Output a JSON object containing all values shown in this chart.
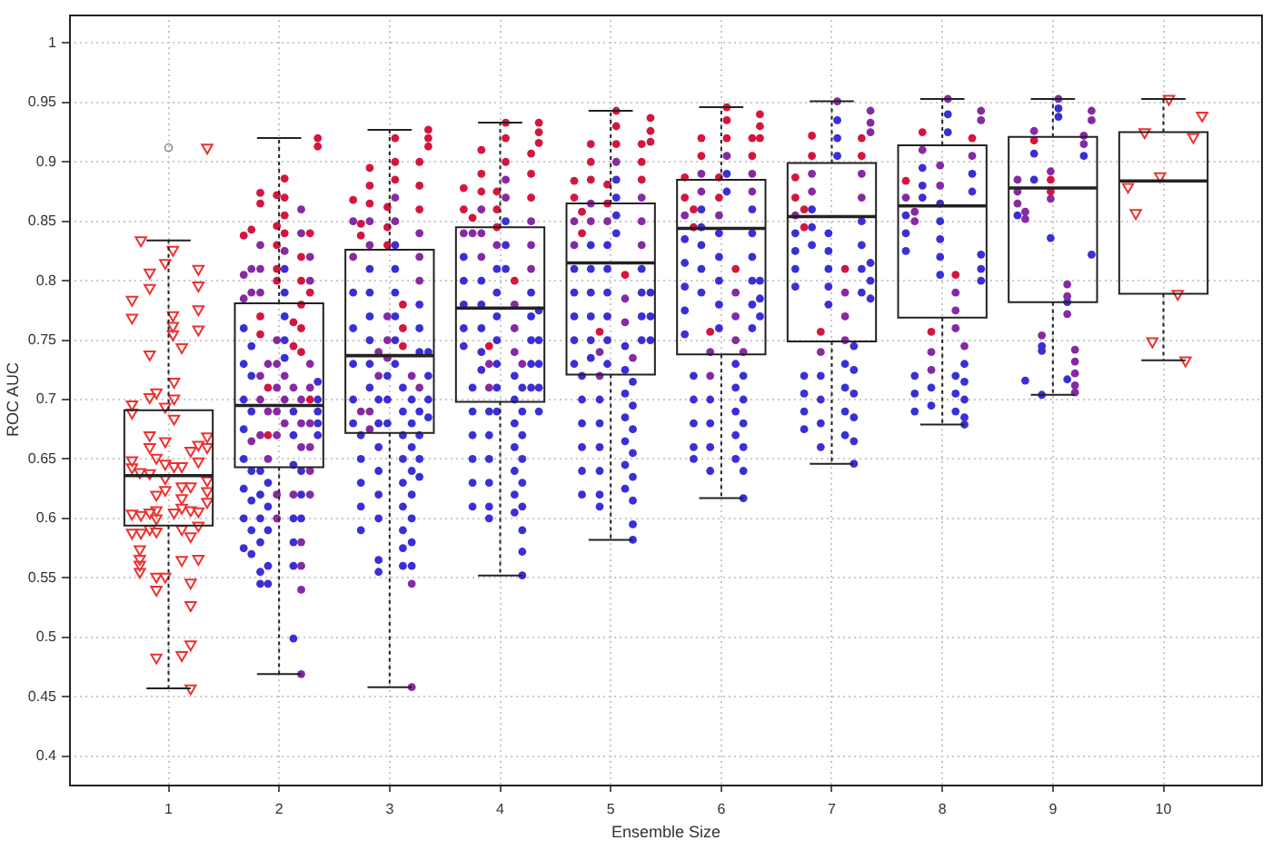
{
  "chart_data": {
    "type": "box",
    "xlabel": "Ensemble Size",
    "ylabel": "ROC AUC",
    "x": [
      1,
      2,
      3,
      4,
      5,
      6,
      7,
      8,
      9,
      10
    ],
    "xlim": [
      0.1,
      10.9
    ],
    "xticks": [
      1,
      2,
      3,
      4,
      5,
      6,
      7,
      8,
      9,
      10
    ],
    "ylim": [
      0.376,
      1.024
    ],
    "yticks": [
      0.4,
      0.45,
      0.5,
      0.55,
      0.6,
      0.65,
      0.7,
      0.75,
      0.8,
      0.85,
      0.9,
      0.95,
      1
    ],
    "grid": true,
    "boxes": [
      {
        "low": 0.457,
        "q1": 0.594,
        "median": 0.636,
        "q3": 0.691,
        "high": 0.834,
        "outliers": [
          0.912
        ]
      },
      {
        "low": 0.469,
        "q1": 0.643,
        "median": 0.695,
        "q3": 0.781,
        "high": 0.92
      },
      {
        "low": 0.458,
        "q1": 0.672,
        "median": 0.737,
        "q3": 0.826,
        "high": 0.927
      },
      {
        "low": 0.552,
        "q1": 0.698,
        "median": 0.777,
        "q3": 0.845,
        "high": 0.933
      },
      {
        "low": 0.582,
        "q1": 0.721,
        "median": 0.815,
        "q3": 0.865,
        "high": 0.943
      },
      {
        "low": 0.617,
        "q1": 0.738,
        "median": 0.844,
        "q3": 0.885,
        "high": 0.946
      },
      {
        "low": 0.646,
        "q1": 0.749,
        "median": 0.854,
        "q3": 0.899,
        "high": 0.951
      },
      {
        "low": 0.679,
        "q1": 0.769,
        "median": 0.863,
        "q3": 0.914,
        "high": 0.953
      },
      {
        "low": 0.704,
        "q1": 0.782,
        "median": 0.878,
        "q3": 0.921,
        "high": 0.953
      },
      {
        "low": 0.733,
        "q1": 0.789,
        "median": 0.884,
        "q3": 0.925,
        "high": 0.953
      }
    ],
    "series": [
      {
        "type": "scatter",
        "color": "#3a2fd6",
        "marker": "circle",
        "x": [
          1.68,
          1.68,
          1.68,
          1.68,
          1.68,
          1.68,
          1.68,
          1.68,
          1.75,
          1.75,
          1.75,
          1.75,
          1.75,
          1.75,
          1.75,
          1.83,
          1.83,
          1.83,
          1.83,
          1.83,
          1.83,
          1.9,
          1.9,
          1.9,
          1.9,
          1.9,
          2.05,
          2.05,
          2.05,
          2.05,
          2.05,
          2.13,
          2.13,
          2.13,
          2.13,
          2.13,
          2.13,
          2.13,
          2.2,
          2.2,
          2.2,
          2.35,
          2.35,
          2.35,
          2.35,
          2.35,
          2.67,
          2.67,
          2.67,
          2.67,
          2.67,
          2.74,
          2.74,
          2.74,
          2.74,
          2.74,
          2.82,
          2.82,
          2.82,
          2.82,
          2.82,
          2.82,
          2.9,
          2.9,
          2.9,
          2.9,
          2.9,
          2.9,
          2.9,
          2.9,
          2.98,
          2.98,
          2.98,
          3.05,
          3.05,
          3.05,
          3.05,
          3.05,
          3.05,
          3.12,
          3.12,
          3.12,
          3.12,
          3.12,
          3.12,
          3.12,
          3.12,
          3.12,
          3.2,
          3.2,
          3.2,
          3.2,
          3.2,
          3.2,
          3.2,
          3.2,
          3.27,
          3.27,
          3.27,
          3.27,
          3.27,
          3.27,
          3.27,
          3.35,
          3.35,
          3.35,
          3.35,
          3.67,
          3.67,
          3.67,
          3.67,
          3.67,
          3.75,
          3.75,
          3.75,
          3.75,
          3.75,
          3.75,
          3.83,
          3.83,
          3.83,
          3.83,
          3.83,
          3.9,
          3.9,
          3.9,
          3.9,
          3.9,
          3.9,
          3.97,
          3.97,
          3.97,
          3.97,
          3.97,
          3.97,
          3.97,
          4.05,
          4.05,
          4.05,
          4.13,
          4.13,
          4.13,
          4.13,
          4.13,
          4.13,
          4.13,
          4.2,
          4.2,
          4.2,
          4.2,
          4.2,
          4.2,
          4.2,
          4.2,
          4.2,
          4.28,
          4.28,
          4.28,
          4.28,
          4.28,
          4.35,
          4.35,
          4.35,
          4.35,
          4.35,
          4.67,
          4.67,
          4.67,
          4.67,
          4.67,
          4.74,
          4.74,
          4.74,
          4.74,
          4.74,
          4.74,
          4.82,
          4.82,
          4.82,
          4.82,
          4.82,
          4.82,
          4.9,
          4.9,
          4.9,
          4.9,
          4.9,
          4.9,
          4.97,
          4.97,
          4.97,
          4.97,
          4.97,
          4.97,
          5.05,
          5.05,
          5.05,
          5.05,
          5.13,
          5.13,
          5.13,
          5.13,
          5.13,
          5.13,
          5.13,
          5.2,
          5.2,
          5.2,
          5.2,
          5.2,
          5.2,
          5.2,
          5.2,
          5.28,
          5.28,
          5.28,
          5.28,
          5.36,
          5.36,
          5.36,
          5.67,
          5.67,
          5.67,
          5.67,
          5.67,
          5.75,
          5.75,
          5.75,
          5.75,
          5.75,
          5.82,
          5.82,
          5.82,
          5.82,
          5.82,
          5.9,
          5.9,
          5.9,
          5.9,
          5.98,
          5.98,
          5.98,
          5.98,
          5.98,
          6.05,
          6.05,
          6.13,
          6.13,
          6.13,
          6.13,
          6.13,
          6.2,
          6.2,
          6.2,
          6.2,
          6.2,
          6.2,
          6.28,
          6.28,
          6.28,
          6.28,
          6.28,
          6.28,
          6.35,
          6.35,
          6.35,
          6.67,
          6.67,
          6.67,
          6.67,
          6.75,
          6.75,
          6.75,
          6.75,
          6.82,
          6.82,
          6.82,
          6.9,
          6.9,
          6.9,
          6.9,
          6.97,
          6.97,
          6.97,
          6.97,
          6.97,
          7.05,
          7.05,
          7.05,
          7.12,
          7.12,
          7.12,
          7.12,
          7.2,
          7.2,
          7.2,
          7.2,
          7.2,
          7.2,
          7.27,
          7.27,
          7.27,
          7.27,
          7.35,
          7.35,
          7.35,
          7.67,
          7.67,
          7.67,
          7.75,
          7.75,
          7.75,
          7.82,
          7.82,
          7.82,
          7.9,
          7.9,
          7.98,
          7.98,
          7.98,
          7.98,
          7.98,
          8.05,
          8.05,
          8.12,
          8.12,
          8.12,
          8.2,
          8.2,
          8.2,
          8.2,
          8.2,
          8.27,
          8.27,
          8.35,
          8.35,
          8.35,
          8.68,
          8.75,
          8.83,
          8.83,
          8.9,
          8.9,
          8.9,
          8.98,
          9.05,
          9.05,
          9.13,
          9.13,
          9.28,
          9.35
        ],
        "values": [
          0.76,
          0.73,
          0.7,
          0.675,
          0.65,
          0.625,
          0.6,
          0.575,
          0.745,
          0.72,
          0.69,
          0.64,
          0.615,
          0.59,
          0.57,
          0.64,
          0.62,
          0.6,
          0.58,
          0.555,
          0.545,
          0.63,
          0.61,
          0.59,
          0.56,
          0.545,
          0.81,
          0.79,
          0.77,
          0.75,
          0.735,
          0.69,
          0.67,
          0.645,
          0.6,
          0.58,
          0.56,
          0.499,
          0.64,
          0.62,
          0.6,
          0.715,
          0.7,
          0.69,
          0.68,
          0.67,
          0.79,
          0.76,
          0.73,
          0.7,
          0.68,
          0.67,
          0.65,
          0.63,
          0.61,
          0.59,
          0.81,
          0.79,
          0.77,
          0.75,
          0.73,
          0.71,
          0.7,
          0.68,
          0.66,
          0.64,
          0.62,
          0.6,
          0.565,
          0.555,
          0.72,
          0.7,
          0.68,
          0.83,
          0.81,
          0.79,
          0.77,
          0.75,
          0.73,
          0.71,
          0.69,
          0.67,
          0.65,
          0.63,
          0.61,
          0.59,
          0.575,
          0.56,
          0.7,
          0.68,
          0.66,
          0.64,
          0.62,
          0.6,
          0.58,
          0.56,
          0.78,
          0.76,
          0.74,
          0.69,
          0.67,
          0.65,
          0.635,
          0.74,
          0.72,
          0.7,
          0.685,
          0.82,
          0.8,
          0.78,
          0.76,
          0.745,
          0.71,
          0.69,
          0.67,
          0.65,
          0.63,
          0.61,
          0.8,
          0.78,
          0.76,
          0.74,
          0.725,
          0.69,
          0.67,
          0.65,
          0.63,
          0.61,
          0.6,
          0.81,
          0.79,
          0.77,
          0.75,
          0.73,
          0.71,
          0.69,
          0.85,
          0.83,
          0.81,
          0.72,
          0.7,
          0.68,
          0.66,
          0.64,
          0.62,
          0.605,
          0.71,
          0.69,
          0.67,
          0.65,
          0.63,
          0.61,
          0.59,
          0.572,
          0.552,
          0.79,
          0.77,
          0.75,
          0.73,
          0.71,
          0.775,
          0.75,
          0.73,
          0.71,
          0.69,
          0.81,
          0.79,
          0.77,
          0.75,
          0.73,
          0.72,
          0.7,
          0.68,
          0.66,
          0.64,
          0.62,
          0.83,
          0.81,
          0.79,
          0.77,
          0.75,
          0.735,
          0.7,
          0.68,
          0.66,
          0.64,
          0.62,
          0.61,
          0.83,
          0.81,
          0.79,
          0.77,
          0.75,
          0.73,
          0.885,
          0.87,
          0.855,
          0.84,
          0.745,
          0.725,
          0.705,
          0.685,
          0.665,
          0.645,
          0.625,
          0.715,
          0.695,
          0.675,
          0.655,
          0.635,
          0.615,
          0.595,
          0.582,
          0.81,
          0.79,
          0.77,
          0.75,
          0.79,
          0.77,
          0.75,
          0.835,
          0.815,
          0.795,
          0.775,
          0.755,
          0.72,
          0.7,
          0.68,
          0.66,
          0.65,
          0.86,
          0.845,
          0.83,
          0.81,
          0.79,
          0.7,
          0.68,
          0.66,
          0.64,
          0.84,
          0.82,
          0.8,
          0.78,
          0.76,
          0.89,
          0.875,
          0.73,
          0.71,
          0.69,
          0.67,
          0.65,
          0.72,
          0.7,
          0.68,
          0.66,
          0.64,
          0.617,
          0.86,
          0.84,
          0.82,
          0.8,
          0.78,
          0.76,
          0.8,
          0.785,
          0.77,
          0.84,
          0.825,
          0.81,
          0.795,
          0.72,
          0.705,
          0.69,
          0.675,
          0.86,
          0.845,
          0.83,
          0.72,
          0.7,
          0.68,
          0.66,
          0.84,
          0.825,
          0.81,
          0.795,
          0.78,
          0.935,
          0.92,
          0.905,
          0.73,
          0.71,
          0.69,
          0.67,
          0.745,
          0.725,
          0.705,
          0.685,
          0.665,
          0.646,
          0.85,
          0.83,
          0.81,
          0.79,
          0.815,
          0.8,
          0.785,
          0.855,
          0.84,
          0.825,
          0.72,
          0.705,
          0.69,
          0.895,
          0.88,
          0.87,
          0.71,
          0.695,
          0.865,
          0.85,
          0.835,
          0.82,
          0.805,
          0.94,
          0.925,
          0.72,
          0.705,
          0.69,
          0.73,
          0.715,
          0.7,
          0.685,
          0.679,
          0.89,
          0.875,
          0.822,
          0.81,
          0.8,
          0.855,
          0.716,
          0.907,
          0.885,
          0.745,
          0.741,
          0.704,
          0.836,
          0.945,
          0.938,
          0.782,
          0.717,
          0.905,
          0.822
        ]
      },
      {
        "type": "scatter",
        "color": "#862aa2",
        "marker": "circle",
        "x": [
          1.68,
          1.68,
          1.75,
          1.75,
          1.75,
          1.83,
          1.83,
          1.83,
          1.83,
          1.83,
          1.83,
          1.9,
          1.9,
          1.9,
          1.98,
          1.98,
          1.98,
          1.98,
          1.98,
          1.98,
          1.98,
          2.05,
          2.05,
          2.05,
          2.05,
          2.13,
          2.13,
          2.2,
          2.2,
          2.2,
          2.2,
          2.2,
          2.2,
          2.2,
          2.2,
          2.2,
          2.28,
          2.28,
          2.28,
          2.28,
          2.28,
          2.28,
          2.28,
          2.28,
          2.67,
          2.67,
          2.74,
          2.82,
          2.82,
          2.82,
          2.82,
          2.9,
          2.9,
          2.98,
          2.98,
          2.98,
          3.05,
          3.05,
          3.2,
          3.2,
          3.2,
          3.27,
          3.27,
          3.27,
          3.27,
          3.67,
          3.75,
          3.83,
          3.83,
          3.83,
          3.9,
          3.9,
          3.97,
          4.05,
          4.05,
          4.13,
          4.13,
          4.13,
          4.2,
          4.28,
          4.28,
          4.28,
          4.67,
          4.67,
          4.82,
          4.82,
          4.9,
          4.9,
          4.97,
          5.05,
          5.13,
          5.13,
          5.2,
          5.28,
          5.28,
          5.28,
          5.67,
          5.82,
          5.82,
          5.9,
          5.9,
          5.98,
          6.05,
          6.13,
          6.13,
          6.13,
          6.2,
          6.28,
          6.28,
          6.67,
          6.82,
          6.82,
          6.9,
          7.05,
          7.12,
          7.12,
          7.12,
          7.27,
          7.27,
          7.35,
          7.35,
          7.35,
          7.67,
          7.75,
          7.75,
          7.82,
          7.9,
          7.9,
          7.98,
          7.98,
          8.05,
          8.12,
          8.12,
          8.12,
          8.2,
          8.27,
          8.35,
          8.35,
          8.68,
          8.68,
          8.68,
          8.75,
          8.75,
          8.83,
          8.9,
          8.98,
          8.98,
          9.05,
          9.13,
          9.13,
          9.13,
          9.2,
          9.2,
          9.2,
          9.2,
          9.2,
          9.28,
          9.28,
          9.35,
          9.35
        ],
        "values": [
          0.805,
          0.785,
          0.81,
          0.79,
          0.665,
          0.83,
          0.81,
          0.79,
          0.72,
          0.7,
          0.67,
          0.73,
          0.69,
          0.65,
          0.75,
          0.73,
          0.71,
          0.69,
          0.67,
          0.62,
          0.6,
          0.825,
          0.72,
          0.7,
          0.68,
          0.71,
          0.62,
          0.86,
          0.84,
          0.7,
          0.68,
          0.66,
          0.58,
          0.56,
          0.54,
          0.469,
          0.82,
          0.8,
          0.73,
          0.71,
          0.68,
          0.66,
          0.64,
          0.62,
          0.85,
          0.82,
          0.69,
          0.85,
          0.83,
          0.69,
          0.675,
          0.74,
          0.72,
          0.77,
          0.75,
          0.735,
          0.87,
          0.85,
          0.72,
          0.545,
          0.458,
          0.84,
          0.82,
          0.8,
          0.71,
          0.84,
          0.84,
          0.86,
          0.84,
          0.82,
          0.73,
          0.71,
          0.83,
          0.885,
          0.87,
          0.78,
          0.76,
          0.74,
          0.73,
          0.85,
          0.83,
          0.81,
          0.85,
          0.83,
          0.865,
          0.85,
          0.74,
          0.72,
          0.85,
          0.9,
          0.785,
          0.765,
          0.735,
          0.87,
          0.85,
          0.83,
          0.855,
          0.89,
          0.875,
          0.74,
          0.72,
          0.855,
          0.905,
          0.79,
          0.77,
          0.75,
          0.74,
          0.89,
          0.875,
          0.855,
          0.89,
          0.875,
          0.74,
          0.951,
          0.79,
          0.77,
          0.75,
          0.89,
          0.87,
          0.943,
          0.933,
          0.925,
          0.87,
          0.858,
          0.85,
          0.91,
          0.74,
          0.725,
          0.897,
          0.88,
          0.953,
          0.79,
          0.775,
          0.76,
          0.745,
          0.905,
          0.943,
          0.935,
          0.885,
          0.875,
          0.865,
          0.858,
          0.852,
          0.926,
          0.754,
          0.892,
          0.869,
          0.953,
          0.797,
          0.787,
          0.772,
          0.742,
          0.732,
          0.722,
          0.712,
          0.706,
          0.922,
          0.915,
          0.943,
          0.935
        ]
      },
      {
        "type": "scatter",
        "color": "#d4163e",
        "marker": "circle",
        "x": [
          1.68,
          1.75,
          1.83,
          1.83,
          1.83,
          1.83,
          1.9,
          1.9,
          1.98,
          1.98,
          1.98,
          1.98,
          1.98,
          2.05,
          2.05,
          2.05,
          2.05,
          2.13,
          2.13,
          2.2,
          2.2,
          2.2,
          2.2,
          2.2,
          2.28,
          2.28,
          2.28,
          2.35,
          2.35,
          2.67,
          2.74,
          2.74,
          2.82,
          2.82,
          2.82,
          2.98,
          2.98,
          2.98,
          3.05,
          3.05,
          3.05,
          3.12,
          3.12,
          3.12,
          3.27,
          3.27,
          3.27,
          3.35,
          3.35,
          3.35,
          3.67,
          3.67,
          3.75,
          3.83,
          3.83,
          3.83,
          3.9,
          3.97,
          3.97,
          3.97,
          4.05,
          4.05,
          4.05,
          4.13,
          4.28,
          4.28,
          4.28,
          4.35,
          4.35,
          4.35,
          4.67,
          4.67,
          4.74,
          4.74,
          4.82,
          4.82,
          4.82,
          4.9,
          4.97,
          4.97,
          5.05,
          5.05,
          5.05,
          5.13,
          5.28,
          5.28,
          5.28,
          5.36,
          5.36,
          5.36,
          5.67,
          5.67,
          5.75,
          5.75,
          5.82,
          5.82,
          5.9,
          5.98,
          5.98,
          6.05,
          6.05,
          6.05,
          6.13,
          6.28,
          6.28,
          6.35,
          6.35,
          6.35,
          6.67,
          6.67,
          6.75,
          6.75,
          6.82,
          6.82,
          6.9,
          7.12,
          7.27,
          7.27,
          7.67,
          7.82,
          7.9,
          8.12,
          8.27,
          8.83,
          8.98,
          8.98
        ],
        "values": [
          0.838,
          0.843,
          0.874,
          0.865,
          0.77,
          0.755,
          0.71,
          0.67,
          0.872,
          0.846,
          0.83,
          0.81,
          0.8,
          0.886,
          0.87,
          0.855,
          0.84,
          0.765,
          0.745,
          0.82,
          0.8,
          0.78,
          0.76,
          0.74,
          0.84,
          0.79,
          0.7,
          0.92,
          0.913,
          0.868,
          0.848,
          0.838,
          0.895,
          0.88,
          0.865,
          0.862,
          0.845,
          0.83,
          0.92,
          0.9,
          0.885,
          0.78,
          0.76,
          0.745,
          0.9,
          0.88,
          0.86,
          0.927,
          0.92,
          0.913,
          0.878,
          0.86,
          0.853,
          0.91,
          0.89,
          0.875,
          0.745,
          0.875,
          0.86,
          0.845,
          0.933,
          0.92,
          0.9,
          0.8,
          0.907,
          0.89,
          0.87,
          0.933,
          0.925,
          0.916,
          0.884,
          0.87,
          0.858,
          0.84,
          0.915,
          0.9,
          0.885,
          0.757,
          0.881,
          0.865,
          0.943,
          0.93,
          0.915,
          0.805,
          0.915,
          0.9,
          0.885,
          0.937,
          0.926,
          0.917,
          0.887,
          0.87,
          0.86,
          0.845,
          0.92,
          0.905,
          0.757,
          0.887,
          0.87,
          0.946,
          0.935,
          0.92,
          0.81,
          0.92,
          0.905,
          0.94,
          0.93,
          0.92,
          0.887,
          0.87,
          0.86,
          0.845,
          0.922,
          0.905,
          0.757,
          0.81,
          0.92,
          0.905,
          0.884,
          0.925,
          0.757,
          0.805,
          0.92,
          0.918,
          0.885,
          0.875
        ]
      },
      {
        "type": "scatter",
        "color": "#ee3030",
        "marker": "triangle",
        "x": [
          1.35,
          0.75,
          1.04,
          0.97,
          0.83,
          1.27,
          0.83,
          1.27,
          0.67,
          0.67,
          1.04,
          1.27,
          1.04,
          1.04,
          1.27,
          1.12,
          0.83,
          1.05,
          0.83,
          0.89,
          1.05,
          0.67,
          0.67,
          0.97,
          1.05,
          1.35,
          0.83,
          0.83,
          0.97,
          1.2,
          1.27,
          1.35,
          1.27,
          0.67,
          0.67,
          0.74,
          0.83,
          0.89,
          0.97,
          1.05,
          1.12,
          0.97,
          1.35,
          1.35,
          1.35,
          1.12,
          1.2,
          0.89,
          0.97,
          1.12,
          1.05,
          1.12,
          1.2,
          1.27,
          0.67,
          0.75,
          0.83,
          0.89,
          0.89,
          1.27,
          0.67,
          0.75,
          0.83,
          0.89,
          1.12,
          1.2,
          0.74,
          0.74,
          0.74,
          0.74,
          1.12,
          1.27,
          0.89,
          0.97,
          0.89,
          1.2,
          1.2,
          0.89,
          1.12,
          1.2,
          1.2,
          10.05,
          10.35,
          9.83,
          10.27,
          9.97,
          9.68,
          9.75,
          10.13,
          9.9,
          10.2
        ],
        "values": [
          0.912,
          0.834,
          0.826,
          0.815,
          0.807,
          0.81,
          0.794,
          0.796,
          0.784,
          0.769,
          0.771,
          0.776,
          0.762,
          0.755,
          0.759,
          0.744,
          0.738,
          0.715,
          0.702,
          0.706,
          0.701,
          0.696,
          0.689,
          0.694,
          0.684,
          0.669,
          0.67,
          0.66,
          0.665,
          0.657,
          0.662,
          0.66,
          0.648,
          0.649,
          0.643,
          0.639,
          0.638,
          0.651,
          0.646,
          0.644,
          0.644,
          0.634,
          0.632,
          0.623,
          0.614,
          0.627,
          0.627,
          0.62,
          0.624,
          0.617,
          0.605,
          0.609,
          0.607,
          0.606,
          0.604,
          0.603,
          0.605,
          0.607,
          0.6,
          0.594,
          0.588,
          0.588,
          0.591,
          0.589,
          0.591,
          0.585,
          0.574,
          0.566,
          0.561,
          0.555,
          0.565,
          0.566,
          0.551,
          0.551,
          0.54,
          0.546,
          0.527,
          0.483,
          0.485,
          0.494,
          0.457,
          0.953,
          0.939,
          0.925,
          0.921,
          0.888,
          0.879,
          0.857,
          0.789,
          0.749,
          0.733
        ]
      }
    ]
  }
}
